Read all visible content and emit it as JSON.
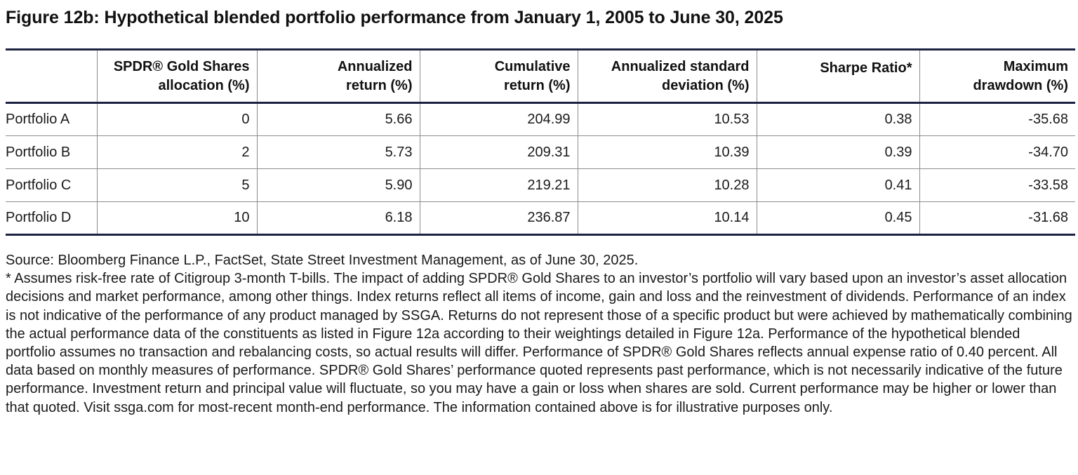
{
  "title": "Figure 12b: Hypothetical blended portfolio performance from January 1, 2005 to June 30, 2025",
  "table": {
    "headers": [
      "",
      "SPDR® Gold Shares allocation (%)",
      "Annualized return (%)",
      "Cumulative return (%)",
      "Annualized standard deviation (%)",
      "Sharpe Ratio*",
      "Maximum drawdown (%)"
    ],
    "header_lines": [
      [
        "",
        ""
      ],
      [
        "SPDR® Gold Shares",
        "allocation (%)"
      ],
      [
        "Annualized",
        "return (%)"
      ],
      [
        "Cumulative",
        "return (%)"
      ],
      [
        "Annualized standard",
        "deviation (%)"
      ],
      [
        "Sharpe Ratio*",
        ""
      ],
      [
        "Maximum",
        "drawdown (%)"
      ]
    ],
    "rows": [
      [
        "Portfolio A",
        "0",
        "5.66",
        "204.99",
        "10.53",
        "0.38",
        "-35.68"
      ],
      [
        "Portfolio B",
        "2",
        "5.73",
        "209.31",
        "10.39",
        "0.39",
        "-34.70"
      ],
      [
        "Portfolio C",
        "5",
        "5.90",
        "219.21",
        "10.28",
        "0.41",
        "-33.58"
      ],
      [
        "Portfolio D",
        "10",
        "6.18",
        "236.87",
        "10.14",
        "0.45",
        "-31.68"
      ]
    ]
  },
  "source": "Source: Bloomberg Finance L.P., FactSet, State Street Investment Management, as of June 30, 2025.",
  "footnote": "* Assumes risk-free rate of Citigroup 3-month T-bills. The impact of adding SPDR® Gold Shares to an investor’s portfolio will vary based upon an investor’s asset allocation decisions and market performance, among other things. Index returns reflect all items of income, gain and loss and the reinvestment of dividends. Performance of an index is not indicative of the performance of any product managed by SSGA. Returns do not represent those of a specific product but were achieved by mathematically combining the actual performance data of the constituents as listed in Figure 12a according to their weightings detailed in Figure 12a. Performance of the hypothetical blended portfolio assumes no transaction and rebalancing costs, so actual results will differ. Performance of SPDR® Gold Shares reflects annual expense ratio of 0.40 percent. All data based on monthly measures of performance. SPDR® Gold Shares’ performance quoted represents past performance, which is not necessarily indicative of the future performance. Investment return and principal value will fluctuate, so you may have a gain or loss when shares are sold. Current performance may be higher or lower than that quoted. Visit ssga.com for most-recent month-end performance. The information contained above is for illustrative purposes only."
}
